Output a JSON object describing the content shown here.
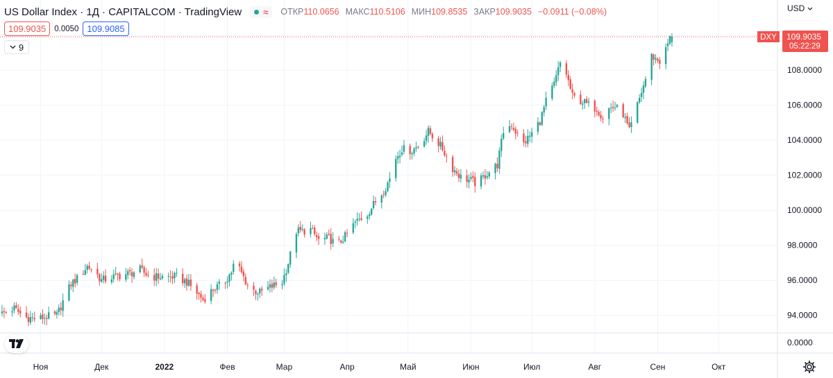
{
  "header": {
    "symbol": "US Dollar Index · 1Д · CAPITALCOM · TradingView",
    "market_icon": "wave-icon",
    "ohlc": [
      {
        "key": "ОТКР",
        "value": "110.0656"
      },
      {
        "key": "МАКС",
        "value": "110.5106"
      },
      {
        "key": "МИН",
        "value": "109.8535"
      },
      {
        "key": "ЗАКР",
        "value": "109.9035"
      }
    ],
    "change": "−0.0911 (−0.08%)"
  },
  "quote": {
    "sell": "109.9035",
    "spread": "0.0050",
    "buy": "109.9085"
  },
  "indicators": {
    "count": "9"
  },
  "currency_label": "USD",
  "colors": {
    "up": "#26a69a",
    "down": "#ef5350",
    "grid": "#f0f3fa",
    "text": "#131722",
    "accent": "#2962ff"
  },
  "chart_data": {
    "type": "candlestick",
    "title": "US Dollar Index · 1Д · CAPITALCOM · TradingView",
    "ylim": [
      93.0,
      112.0
    ],
    "y_ticks": [
      "94.0000",
      "96.0000",
      "98.0000",
      "100.0000",
      "102.0000",
      "104.0000",
      "106.0000",
      "108.0000",
      "110.0000"
    ],
    "volume_axis_label": "0.0000",
    "x_labels": [
      "Ноя",
      "Дек",
      "2022",
      "Фев",
      "Мар",
      "Апр",
      "Май",
      "Июн",
      "Июл",
      "Авг",
      "Сен",
      "Окт"
    ],
    "x_label_dates": [
      "2021-11-01",
      "2021-12-01",
      "2022-01-01",
      "2022-02-01",
      "2022-03-01",
      "2022-04-01",
      "2022-05-01",
      "2022-06-01",
      "2022-07-01",
      "2022-08-01",
      "2022-09-01",
      "2022-10-01"
    ],
    "x_range": [
      "2021-10-12",
      "2022-10-30"
    ],
    "last_price": {
      "symbol": "DXY",
      "price": "109.9035",
      "countdown": "05:22:29",
      "value": 109.9035
    },
    "close_anchors": [
      [
        "2021-10-13",
        94.1
      ],
      [
        "2021-10-19",
        94.4
      ],
      [
        "2021-10-24",
        93.9
      ],
      [
        "2021-10-31",
        93.8
      ],
      [
        "2021-11-03",
        93.9
      ],
      [
        "2021-11-09",
        94.0
      ],
      [
        "2021-11-12",
        94.8
      ],
      [
        "2021-11-16",
        95.8
      ],
      [
        "2021-11-19",
        96.1
      ],
      [
        "2021-11-24",
        96.8
      ],
      [
        "2021-11-27",
        96.6
      ],
      [
        "2021-12-01",
        96.0
      ],
      [
        "2021-12-07",
        96.2
      ],
      [
        "2021-12-15",
        96.4
      ],
      [
        "2021-12-20",
        96.6
      ],
      [
        "2021-12-25",
        96.2
      ],
      [
        "2022-01-02",
        96.2
      ],
      [
        "2022-01-07",
        96.2
      ],
      [
        "2022-01-12",
        95.9
      ],
      [
        "2022-01-17",
        95.3
      ],
      [
        "2022-01-20",
        94.9
      ],
      [
        "2022-01-25",
        95.5
      ],
      [
        "2022-01-30",
        95.8
      ],
      [
        "2022-02-03",
        96.5
      ],
      [
        "2022-02-05",
        97.2
      ],
      [
        "2022-02-08",
        96.4
      ],
      [
        "2022-02-12",
        95.5
      ],
      [
        "2022-02-17",
        95.3
      ],
      [
        "2022-02-22",
        95.6
      ],
      [
        "2022-02-28",
        95.9
      ],
      [
        "2022-03-03",
        97.0
      ],
      [
        "2022-03-07",
        98.8
      ],
      [
        "2022-03-10",
        98.8
      ],
      [
        "2022-03-14",
        98.9
      ],
      [
        "2022-03-18",
        98.3
      ],
      [
        "2022-03-23",
        98.4
      ],
      [
        "2022-03-27",
        98.0
      ],
      [
        "2022-03-31",
        98.5
      ],
      [
        "2022-04-05",
        99.3
      ],
      [
        "2022-04-11",
        99.8
      ],
      [
        "2022-04-15",
        100.5
      ],
      [
        "2022-04-19",
        101.1
      ],
      [
        "2022-04-22",
        101.8
      ],
      [
        "2022-04-25",
        103.0
      ],
      [
        "2022-04-28",
        103.5
      ],
      [
        "2022-05-03",
        103.4
      ],
      [
        "2022-05-07",
        103.8
      ],
      [
        "2022-05-11",
        104.5
      ],
      [
        "2022-05-15",
        104.0
      ],
      [
        "2022-05-18",
        103.5
      ],
      [
        "2022-05-23",
        102.4
      ],
      [
        "2022-05-27",
        101.9
      ],
      [
        "2022-06-01",
        101.7
      ],
      [
        "2022-06-04",
        101.5
      ],
      [
        "2022-06-08",
        102.0
      ],
      [
        "2022-06-10",
        102.2
      ],
      [
        "2022-06-14",
        102.6
      ],
      [
        "2022-06-17",
        104.5
      ],
      [
        "2022-06-21",
        104.9
      ],
      [
        "2022-06-24",
        104.3
      ],
      [
        "2022-06-27",
        103.8
      ],
      [
        "2022-07-01",
        104.4
      ],
      [
        "2022-07-05",
        105.1
      ],
      [
        "2022-07-08",
        106.2
      ],
      [
        "2022-07-12",
        107.2
      ],
      [
        "2022-07-15",
        108.4
      ],
      [
        "2022-07-18",
        107.8
      ],
      [
        "2022-07-21",
        106.5
      ],
      [
        "2022-07-26",
        106.2
      ],
      [
        "2022-07-29",
        106.0
      ],
      [
        "2022-08-02",
        105.8
      ],
      [
        "2022-08-05",
        105.3
      ],
      [
        "2022-08-08",
        105.8
      ],
      [
        "2022-08-11",
        105.9
      ],
      [
        "2022-08-15",
        105.5
      ],
      [
        "2022-08-18",
        104.5
      ],
      [
        "2022-08-22",
        106.0
      ],
      [
        "2022-08-26",
        107.5
      ],
      [
        "2022-08-29",
        108.8
      ],
      [
        "2022-09-02",
        108.5
      ],
      [
        "2022-09-04",
        108.8
      ],
      [
        "2022-09-06",
        109.5
      ],
      [
        "2022-09-08",
        110.1
      ]
    ],
    "series": [
      {
        "name": "DXY",
        "style": "candles",
        "up_color": "#26a69a",
        "down_color": "#ef5350"
      }
    ],
    "grid": true,
    "volume_pane": true
  }
}
